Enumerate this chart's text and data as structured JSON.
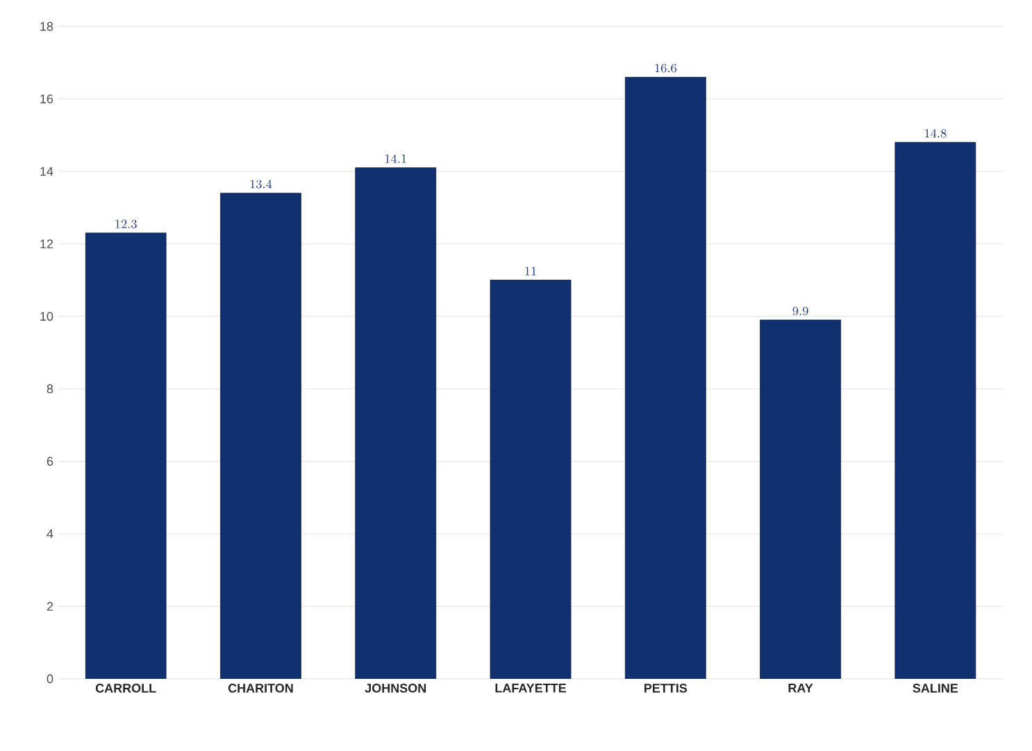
{
  "chart_data": {
    "type": "bar",
    "categories": [
      "CARROLL",
      "CHARITON",
      "JOHNSON",
      "LAFAYETTE",
      "PETTIS",
      "RAY",
      "SALINE"
    ],
    "values": [
      12.3,
      13.4,
      14.1,
      11,
      16.6,
      9.9,
      14.8
    ],
    "color": "#10306f",
    "ylim": [
      0,
      18
    ],
    "yticks": [
      0,
      2,
      4,
      6,
      8,
      10,
      12,
      14,
      16,
      18
    ],
    "grid": "y",
    "data_labels": true
  }
}
